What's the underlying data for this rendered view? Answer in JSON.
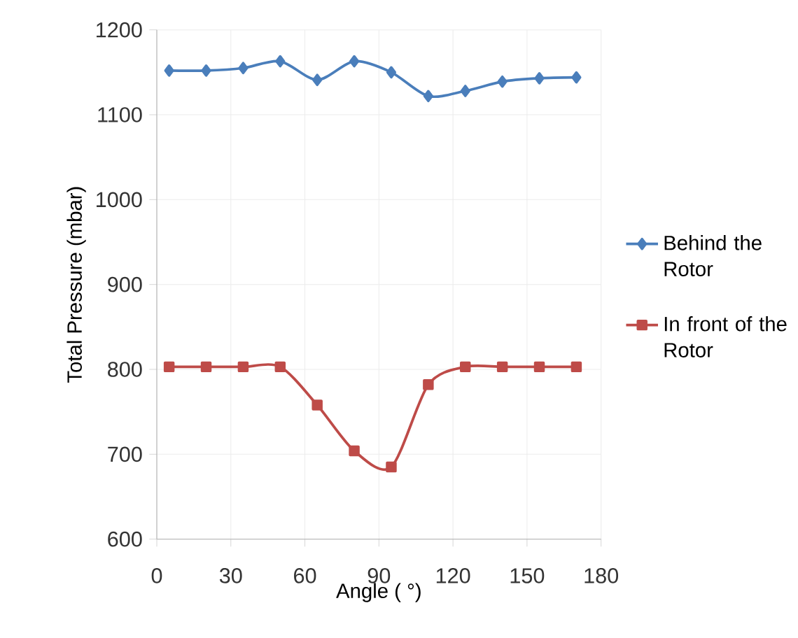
{
  "chart_data": {
    "type": "line",
    "xlabel": "Angle  ( °)",
    "ylabel": "Total Pressure (mbar)",
    "xlim": [
      0,
      180
    ],
    "xticks": [
      0,
      30,
      60,
      90,
      120,
      150,
      180
    ],
    "ylim": [
      600,
      1200
    ],
    "yticks": [
      600,
      700,
      800,
      900,
      1000,
      1100,
      1200
    ],
    "grid": true,
    "legend": "right",
    "series": [
      {
        "name": "Behind the Rotor",
        "color": "#4a7ebb",
        "marker": "diamond",
        "x": [
          5,
          20,
          35,
          50,
          65,
          80,
          95,
          110,
          125,
          140,
          155,
          170
        ],
        "values": [
          1152,
          1152,
          1155,
          1163,
          1141,
          1163,
          1150,
          1122,
          1128,
          1139,
          1143,
          1144
        ]
      },
      {
        "name": "In front of the Rotor",
        "color": "#be4b48",
        "marker": "square",
        "x": [
          5,
          20,
          35,
          50,
          65,
          80,
          95,
          110,
          125,
          140,
          155,
          170
        ],
        "values": [
          803,
          803,
          803,
          803,
          758,
          704,
          685,
          782,
          803,
          803,
          803,
          803
        ]
      }
    ]
  }
}
